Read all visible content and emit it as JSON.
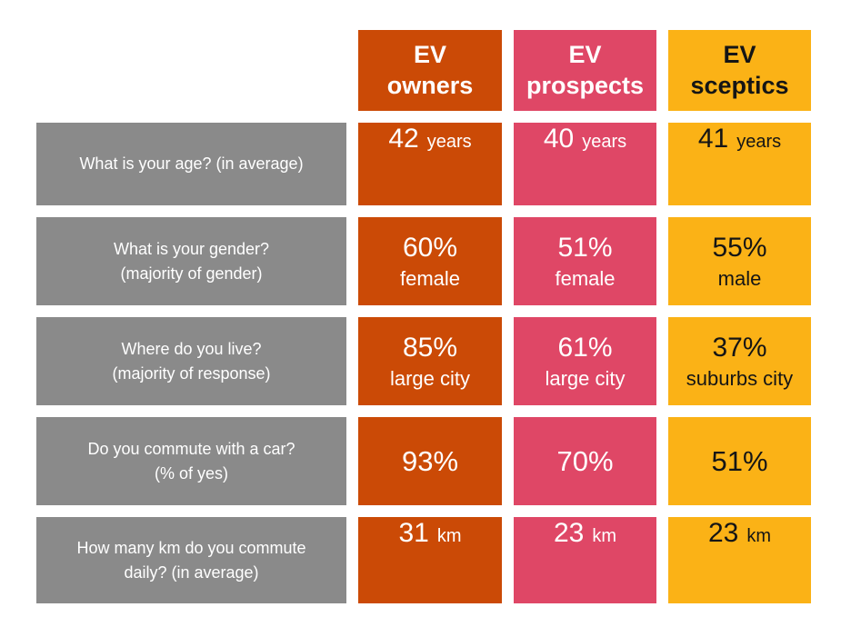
{
  "palette": {
    "owners": "#CB4A06",
    "prospects": "#DF4766",
    "sceptics": "#FBB216",
    "question-bg": "#8A8A8A",
    "dark-text": "#151515"
  },
  "header": {
    "owners": "EV\nowners",
    "prospects": "EV\nprospects",
    "sceptics": "EV\nsceptics"
  },
  "questions": [
    "What is your age? (in average)",
    "What is your gender?\n(majority of gender)",
    "Where do you live?\n(majority of response)",
    "Do you commute with a car?\n(% of yes)",
    "How many km do you commute\ndaily? (in average)"
  ],
  "cells": [
    {
      "owners": {
        "num": "42",
        "unit": "years"
      },
      "prospects": {
        "num": "40",
        "unit": "years"
      },
      "sceptics": {
        "num": "41",
        "unit": "years"
      }
    },
    {
      "owners": {
        "num": "60%",
        "unit": "female"
      },
      "prospects": {
        "num": "51%",
        "unit": "female"
      },
      "sceptics": {
        "num": "55%",
        "unit": "male"
      }
    },
    {
      "owners": {
        "num": "85%",
        "unit": "large city"
      },
      "prospects": {
        "num": "61%",
        "unit": "large city"
      },
      "sceptics": {
        "num": "37%",
        "unit": "suburbs city"
      }
    },
    {
      "owners": {
        "num": "93%",
        "unit": ""
      },
      "prospects": {
        "num": "70%",
        "unit": ""
      },
      "sceptics": {
        "num": "51%",
        "unit": ""
      }
    },
    {
      "owners": {
        "num": "31",
        "unit": "km"
      },
      "prospects": {
        "num": "23",
        "unit": "km"
      },
      "sceptics": {
        "num": "23",
        "unit": "km"
      }
    }
  ],
  "chart_data": {
    "type": "table",
    "title": "EV survey demographics comparison",
    "columns": [
      "EV owners",
      "EV prospects",
      "EV sceptics"
    ],
    "rows": [
      {
        "question": "What is your age? (in average)",
        "values": [
          "42 years",
          "40 years",
          "41 years"
        ]
      },
      {
        "question": "What is your gender? (majority of gender)",
        "values": [
          "60% female",
          "51% female",
          "55% male"
        ]
      },
      {
        "question": "Where do you live? (majority of response)",
        "values": [
          "85% large city",
          "61% large city",
          "37% suburbs city"
        ]
      },
      {
        "question": "Do you commute with a car? (% of yes)",
        "values": [
          "93%",
          "70%",
          "51%"
        ]
      },
      {
        "question": "How many km do you commute daily? (in average)",
        "values": [
          "31 km",
          "23 km",
          "23 km"
        ]
      }
    ],
    "column_colors": [
      "#CB4A06",
      "#DF4766",
      "#FBB216"
    ],
    "question_color": "#8A8A8A",
    "layout": "question column on left, one colored column per respondent group"
  }
}
